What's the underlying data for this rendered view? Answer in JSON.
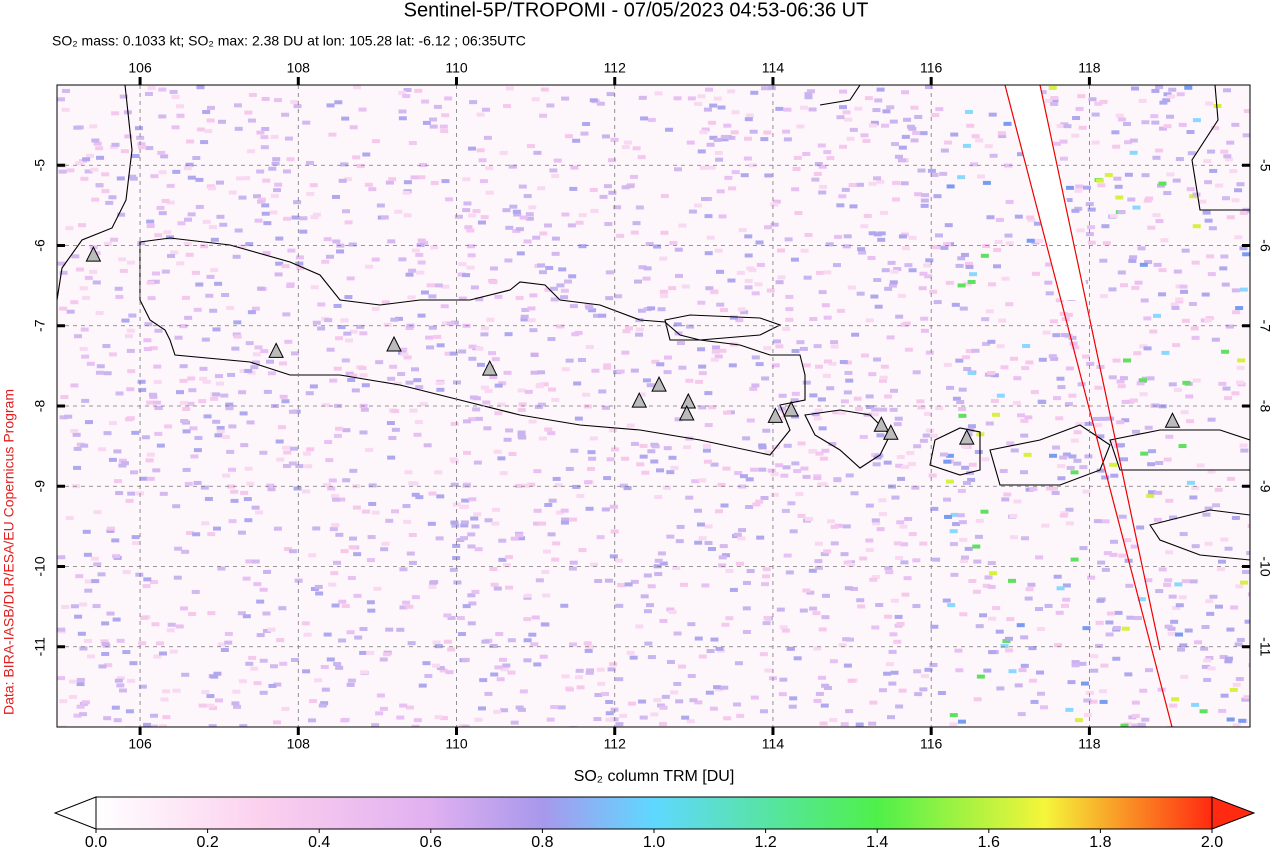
{
  "header": {
    "title": "Sentinel-5P/TROPOMI - 07/05/2023 04:53-06:36 UT",
    "subtitle": "SO₂ mass: 0.1033 kt; SO₂ max: 2.38 DU at lon: 105.28 lat: -6.12 ; 06:35UTC"
  },
  "chart_data": {
    "type": "map",
    "xlim": [
      104.95,
      120.03
    ],
    "ylim": [
      -12,
      -4
    ],
    "xticks": [
      106,
      108,
      110,
      112,
      114,
      116,
      118
    ],
    "yticks": [
      -5,
      -6,
      -7,
      -8,
      -9,
      -10,
      -11
    ],
    "grid": true,
    "credit": "Data: BIRA-IASB/DLR/ESA/EU Copernicus Program",
    "volcanoes": {
      "lon": [
        105.41,
        107.72,
        109.21,
        110.42,
        112.31,
        112.56,
        112.93,
        112.91,
        114.03,
        114.23,
        115.37,
        115.49,
        116.45,
        119.05
      ],
      "lat": [
        -6.12,
        -7.32,
        -7.24,
        -7.54,
        -7.94,
        -7.74,
        -7.95,
        -8.1,
        -8.13,
        -8.05,
        -8.24,
        -8.34,
        -8.4,
        -8.19
      ]
    },
    "colorbar": {
      "label": "SO₂ column TRM [DU]",
      "lim": [
        0,
        2
      ],
      "ticks": [
        {
          "value": 0,
          "label": "0.0"
        },
        {
          "value": 0.2,
          "label": "0.2"
        },
        {
          "value": 0.4,
          "label": "0.4"
        },
        {
          "value": 0.6,
          "label": "0.6"
        },
        {
          "value": 0.8,
          "label": "0.8"
        },
        {
          "value": 1,
          "label": "1.0"
        },
        {
          "value": 1.2,
          "label": "1.2"
        },
        {
          "value": 1.4,
          "label": "1.4"
        },
        {
          "value": 1.6,
          "label": "1.6"
        },
        {
          "value": 1.8,
          "label": "1.8"
        },
        {
          "value": 2,
          "label": "2.0"
        }
      ]
    }
  }
}
